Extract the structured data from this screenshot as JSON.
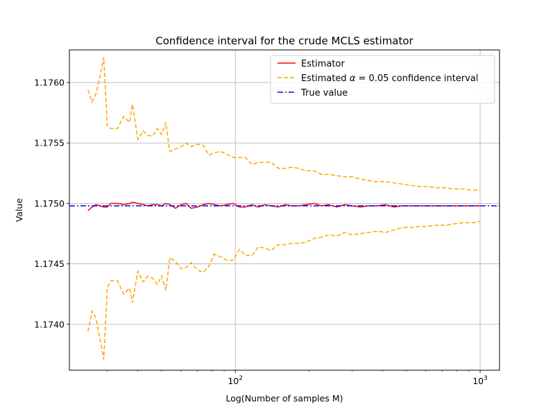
{
  "chart_data": {
    "type": "line",
    "title": "Confidence interval for the crude MCLS estimator",
    "xlabel": "Log(Number of samples M)",
    "ylabel": "Value",
    "xscale": "log",
    "xlim": [
      21,
      1200
    ],
    "ylim": [
      1.17362,
      1.17627
    ],
    "grid": true,
    "legend_position": "top-right",
    "x_ticks": [
      {
        "value": 100,
        "base": "10",
        "exp": "2"
      },
      {
        "value": 1000,
        "base": "10",
        "exp": "3"
      }
    ],
    "y_ticks": [
      {
        "value": 1.174,
        "label": "1.1740"
      },
      {
        "value": 1.1745,
        "label": "1.1745"
      },
      {
        "value": 1.175,
        "label": "1.1750"
      },
      {
        "value": 1.1755,
        "label": "1.1755"
      },
      {
        "value": 1.176,
        "label": "1.1760"
      }
    ],
    "series": [
      {
        "name": "Estimator",
        "color": "#ff0000",
        "style": "solid",
        "x": [
          25,
          26,
          27,
          28,
          29,
          30,
          31,
          33,
          35,
          37,
          38,
          40,
          42,
          44,
          46,
          48,
          50,
          52,
          54,
          57,
          60,
          63,
          66,
          70,
          74,
          78,
          82,
          87,
          92,
          98,
          104,
          110,
          117,
          124,
          132,
          140,
          150,
          160,
          170,
          182,
          195,
          210,
          225,
          240,
          260,
          280,
          300,
          325,
          350,
          380,
          410,
          445,
          480,
          520,
          565,
          610,
          665,
          720,
          780,
          850,
          920,
          1000
        ],
        "y": [
          1.17494,
          1.17497,
          1.17499,
          1.17498,
          1.17497,
          1.17497,
          1.175,
          1.175,
          1.17499,
          1.175,
          1.17501,
          1.175,
          1.17499,
          1.17498,
          1.17499,
          1.17499,
          1.17498,
          1.175,
          1.17499,
          1.17496,
          1.17499,
          1.175,
          1.17496,
          1.17497,
          1.17499,
          1.175,
          1.17499,
          1.17498,
          1.17499,
          1.175,
          1.17497,
          1.17497,
          1.17499,
          1.17497,
          1.17499,
          1.17498,
          1.17497,
          1.17499,
          1.17498,
          1.17498,
          1.17499,
          1.175,
          1.17498,
          1.17499,
          1.17497,
          1.17499,
          1.17498,
          1.17497,
          1.17498,
          1.17498,
          1.17499,
          1.17497,
          1.17498,
          1.17498,
          1.17498,
          1.17498,
          1.17498,
          1.17498,
          1.17498,
          1.17498,
          1.17498,
          1.17498
        ]
      },
      {
        "name": "Estimated $\\alpha$ = 0.05 confidence interval",
        "color": "#ffa500",
        "style": "dashed",
        "x": [
          25,
          26,
          27,
          28,
          29,
          30,
          31,
          33,
          35,
          37,
          38,
          40,
          42,
          44,
          46,
          48,
          50,
          52,
          54,
          57,
          60,
          63,
          66,
          70,
          74,
          78,
          82,
          87,
          92,
          98,
          104,
          110,
          117,
          124,
          132,
          140,
          150,
          160,
          170,
          182,
          195,
          210,
          225,
          240,
          260,
          280,
          300,
          325,
          350,
          380,
          410,
          445,
          480,
          520,
          565,
          610,
          665,
          720,
          780,
          850,
          920,
          1000
        ],
        "y": [
          1.17594,
          1.17584,
          1.17591,
          1.17605,
          1.17621,
          1.17564,
          1.17562,
          1.17562,
          1.17572,
          1.17567,
          1.17582,
          1.17553,
          1.1756,
          1.17556,
          1.17556,
          1.17562,
          1.17557,
          1.17567,
          1.17543,
          1.17545,
          1.17547,
          1.1755,
          1.17547,
          1.17549,
          1.17548,
          1.1754,
          1.17542,
          1.17543,
          1.17541,
          1.17538,
          1.17538,
          1.17538,
          1.17532,
          1.17534,
          1.17534,
          1.17534,
          1.17529,
          1.17529,
          1.1753,
          1.17529,
          1.17527,
          1.17527,
          1.17524,
          1.17524,
          1.17523,
          1.17522,
          1.17522,
          1.1752,
          1.17519,
          1.17518,
          1.17518,
          1.17517,
          1.17516,
          1.17515,
          1.17514,
          1.17514,
          1.17513,
          1.17513,
          1.17512,
          1.17512,
          1.17511,
          1.17511
        ]
      },
      {
        "name": "",
        "color": "#ffa500",
        "style": "dashed",
        "x": [
          25,
          26,
          27,
          28,
          29,
          30,
          31,
          33,
          35,
          37,
          38,
          40,
          42,
          44,
          46,
          48,
          50,
          52,
          54,
          57,
          60,
          63,
          66,
          70,
          74,
          78,
          82,
          87,
          92,
          98,
          104,
          110,
          117,
          124,
          132,
          140,
          150,
          160,
          170,
          182,
          195,
          210,
          225,
          240,
          260,
          280,
          300,
          325,
          350,
          380,
          410,
          445,
          480,
          520,
          565,
          610,
          665,
          720,
          780,
          850,
          920,
          1000
        ],
        "y": [
          1.17394,
          1.17411,
          1.17405,
          1.17388,
          1.17371,
          1.1743,
          1.17436,
          1.17436,
          1.17425,
          1.1743,
          1.17418,
          1.17444,
          1.17435,
          1.1744,
          1.17438,
          1.17433,
          1.1744,
          1.17428,
          1.17455,
          1.17452,
          1.17446,
          1.17447,
          1.17451,
          1.17445,
          1.17443,
          1.17448,
          1.17458,
          1.17456,
          1.17453,
          1.17453,
          1.17462,
          1.17457,
          1.17457,
          1.17464,
          1.17463,
          1.17461,
          1.17466,
          1.17466,
          1.17467,
          1.17467,
          1.17468,
          1.17471,
          1.17472,
          1.17474,
          1.17473,
          1.17476,
          1.17474,
          1.17475,
          1.17476,
          1.17477,
          1.17476,
          1.17478,
          1.1748,
          1.1748,
          1.17481,
          1.17481,
          1.17482,
          1.17482,
          1.17483,
          1.17484,
          1.17484,
          1.17485
        ]
      },
      {
        "name": "True value",
        "color": "#0000ff",
        "style": "dashdot",
        "y_constant": 1.17498
      }
    ]
  }
}
